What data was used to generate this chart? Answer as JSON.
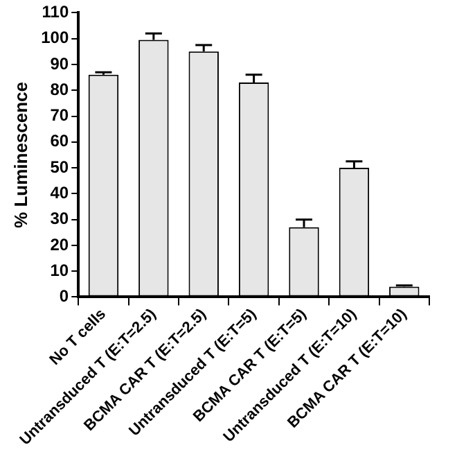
{
  "chart_data": {
    "type": "bar",
    "ylabel": "% Luminescence",
    "categories": [
      "No T cells",
      "Untransduced T (E:T=2.5)",
      "BCMA CAR T (E:T=2.5)",
      "Untransduced T (E:T=5)",
      "BCMA CAR T (E:T=5)",
      "Untransduced T (E:T=10)",
      "BCMA CAR T (E:T=10)"
    ],
    "values": [
      86,
      99.5,
      95,
      83,
      27,
      50,
      4
    ],
    "errors": [
      1,
      2.5,
      2.5,
      3,
      3,
      2.5,
      0.5
    ],
    "color": "#e6e6e6",
    "ylim": [
      0,
      110
    ],
    "yticks": [
      0,
      10,
      20,
      30,
      40,
      50,
      60,
      70,
      80,
      90,
      100,
      110
    ],
    "grid": false,
    "legend": false
  }
}
